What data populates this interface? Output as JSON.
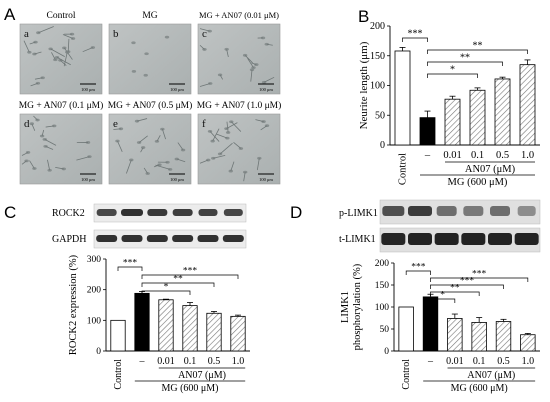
{
  "panels": {
    "A": {
      "label": "A",
      "images": [
        {
          "letter": "a",
          "title": "Control",
          "scale": "100 μm"
        },
        {
          "letter": "b",
          "title": "MG",
          "scale": "100 μm"
        },
        {
          "letter": "c",
          "title": "MG + AN07 (0.01 μM)",
          "scale": "100 μm"
        },
        {
          "letter": "d",
          "title": "MG + AN07 (0.1 μM)",
          "scale": "100 μm"
        },
        {
          "letter": "e",
          "title": "MG + AN07 (0.5 μM)",
          "scale": "100 μm"
        },
        {
          "letter": "f",
          "title": "MG + AN07 (1.0 μM)",
          "scale": "100 μm"
        }
      ]
    },
    "B": {
      "label": "B"
    },
    "C": {
      "label": "C",
      "blot_rows": [
        "ROCK2",
        "GAPDH"
      ]
    },
    "D": {
      "label": "D",
      "blot_rows": [
        "p-LIMK1",
        "t-LIMK1"
      ]
    }
  },
  "chart_data": [
    {
      "id": "B",
      "type": "bar",
      "ylabel": "Neurite length (μm)",
      "ylim": [
        0,
        200
      ],
      "yticks": [
        0,
        50,
        100,
        150,
        200
      ],
      "categories": [
        "Control",
        "–",
        "0.01",
        "0.1",
        "0.5",
        "1.0"
      ],
      "values": [
        158,
        46,
        77,
        92,
        111,
        135
      ],
      "errors": [
        6,
        11,
        5,
        4,
        3,
        8
      ],
      "bar_styles": [
        "white",
        "black",
        "hatch",
        "hatch",
        "hatch",
        "hatch"
      ],
      "group_labels": {
        "an07": "AN07 (μM)",
        "mg": "MG (600 μM)"
      },
      "significance": [
        {
          "from": 0,
          "to": 1,
          "label": "***"
        },
        {
          "from": 1,
          "to": 5,
          "label": "**"
        },
        {
          "from": 1,
          "to": 4,
          "label": "**"
        },
        {
          "from": 1,
          "to": 3,
          "label": "*"
        }
      ]
    },
    {
      "id": "C",
      "type": "bar",
      "ylabel": "ROCK2 expression (%)",
      "ylim": [
        0,
        300
      ],
      "yticks": [
        0,
        100,
        200,
        300
      ],
      "categories": [
        "Control",
        "–",
        "0.01",
        "0.1",
        "0.5",
        "1.0"
      ],
      "values": [
        100,
        188,
        167,
        148,
        123,
        113
      ],
      "errors": [
        0,
        6,
        2,
        10,
        6,
        4
      ],
      "bar_styles": [
        "white",
        "black",
        "hatch",
        "hatch",
        "hatch",
        "hatch"
      ],
      "group_labels": {
        "an07": "AN07 (μM)",
        "mg": "MG (600 μM)"
      },
      "significance": [
        {
          "from": 0,
          "to": 1,
          "label": "***"
        },
        {
          "from": 1,
          "to": 5,
          "label": "***"
        },
        {
          "from": 1,
          "to": 4,
          "label": "**"
        },
        {
          "from": 1,
          "to": 3,
          "label": "*"
        }
      ]
    },
    {
      "id": "D",
      "type": "bar",
      "ylabel": "LIMK1 phosphorylation (%)",
      "ylabel_lines": [
        "LIMK1",
        "phosphorylation (%)"
      ],
      "ylim": [
        0,
        200
      ],
      "yticks": [
        0,
        50,
        100,
        150,
        200
      ],
      "categories": [
        "Control",
        "–",
        "0.01",
        "0.1",
        "0.5",
        "1.0"
      ],
      "values": [
        100,
        123,
        74,
        65,
        67,
        37
      ],
      "errors": [
        0,
        6,
        10,
        11,
        5,
        3
      ],
      "bar_styles": [
        "white",
        "black",
        "hatch",
        "hatch",
        "hatch",
        "hatch"
      ],
      "group_labels": {
        "an07": "AN07 (μM)",
        "mg": "MG (600 μM)"
      },
      "significance": [
        {
          "from": 0,
          "to": 1,
          "label": "***"
        },
        {
          "from": 1,
          "to": 5,
          "label": "***"
        },
        {
          "from": 1,
          "to": 4,
          "label": "***"
        },
        {
          "from": 1,
          "to": 3,
          "label": "**"
        },
        {
          "from": 1,
          "to": 2,
          "label": "*"
        }
      ]
    }
  ]
}
